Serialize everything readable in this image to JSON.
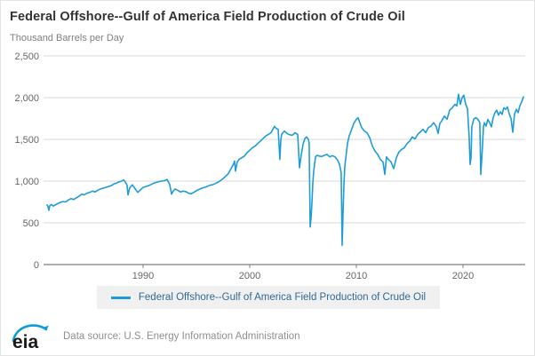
{
  "header": {
    "title": "Federal Offshore--Gulf of America Field Production of Crude Oil",
    "subtitle": "Thousand Barrels per Day"
  },
  "legend": {
    "label": "Federal Offshore--Gulf of America Field Production of Crude Oil",
    "swatch_color": "#1e9cd7"
  },
  "footer": {
    "logo_text": "eia",
    "source": "Data source: U.S. Energy Information Administration"
  },
  "colors": {
    "line": "#1e9cd7",
    "grid": "#d9d9d9",
    "axis": "#7f7f7f",
    "tick_label": "#666666",
    "logo_blue": "#0b9dda",
    "logo_dark": "#1a1a1a"
  },
  "chart_data": {
    "type": "line",
    "title": "Federal Offshore--Gulf of America Field Production of Crude Oil",
    "xlabel": "",
    "ylabel": "Thousand Barrels per Day",
    "x_range": [
      1981,
      2025.67
    ],
    "ylim": [
      0,
      2500
    ],
    "y_ticks": [
      0,
      500,
      1000,
      1500,
      2000,
      2500
    ],
    "y_tick_labels": [
      "0",
      "500",
      "1,000",
      "1,500",
      "2,000",
      "2,500"
    ],
    "x_ticks": [
      1990,
      2000,
      2010,
      2020
    ],
    "x_tick_labels": [
      "1990",
      "2000",
      "2010",
      "2020"
    ],
    "grid": "horizontal",
    "legend_position": "bottom",
    "series": [
      {
        "name": "Federal Offshore--Gulf of America Field Production of Crude Oil",
        "points": [
          [
            1981.0,
            715
          ],
          [
            1981.08,
            695
          ],
          [
            1981.17,
            650
          ],
          [
            1981.25,
            705
          ],
          [
            1981.42,
            720
          ],
          [
            1981.58,
            700
          ],
          [
            1981.75,
            715
          ],
          [
            1982.0,
            730
          ],
          [
            1982.25,
            745
          ],
          [
            1982.5,
            755
          ],
          [
            1982.75,
            750
          ],
          [
            1983.0,
            775
          ],
          [
            1983.25,
            790
          ],
          [
            1983.5,
            780
          ],
          [
            1983.75,
            800
          ],
          [
            1984.0,
            820
          ],
          [
            1984.25,
            845
          ],
          [
            1984.5,
            835
          ],
          [
            1984.75,
            855
          ],
          [
            1985.0,
            865
          ],
          [
            1985.25,
            880
          ],
          [
            1985.5,
            870
          ],
          [
            1985.75,
            890
          ],
          [
            1986.0,
            905
          ],
          [
            1986.25,
            915
          ],
          [
            1986.5,
            925
          ],
          [
            1986.75,
            935
          ],
          [
            1987.0,
            945
          ],
          [
            1987.25,
            965
          ],
          [
            1987.5,
            975
          ],
          [
            1987.75,
            990
          ],
          [
            1988.0,
            1000
          ],
          [
            1988.17,
            1015
          ],
          [
            1988.33,
            990
          ],
          [
            1988.5,
            950
          ],
          [
            1988.58,
            835
          ],
          [
            1988.75,
            920
          ],
          [
            1989.0,
            955
          ],
          [
            1989.25,
            910
          ],
          [
            1989.5,
            865
          ],
          [
            1989.75,
            895
          ],
          [
            1990.0,
            925
          ],
          [
            1990.25,
            935
          ],
          [
            1990.5,
            945
          ],
          [
            1990.75,
            960
          ],
          [
            1991.0,
            975
          ],
          [
            1991.25,
            985
          ],
          [
            1991.5,
            995
          ],
          [
            1991.75,
            1000
          ],
          [
            1992.0,
            1005
          ],
          [
            1992.25,
            1020
          ],
          [
            1992.5,
            960
          ],
          [
            1992.67,
            845
          ],
          [
            1992.83,
            880
          ],
          [
            1993.0,
            905
          ],
          [
            1993.25,
            890
          ],
          [
            1993.5,
            870
          ],
          [
            1993.75,
            880
          ],
          [
            1994.0,
            875
          ],
          [
            1994.25,
            855
          ],
          [
            1994.5,
            848
          ],
          [
            1994.75,
            865
          ],
          [
            1995.0,
            885
          ],
          [
            1995.25,
            900
          ],
          [
            1995.5,
            915
          ],
          [
            1995.75,
            925
          ],
          [
            1996.0,
            935
          ],
          [
            1996.25,
            950
          ],
          [
            1996.5,
            955
          ],
          [
            1996.75,
            970
          ],
          [
            1997.0,
            985
          ],
          [
            1997.25,
            1005
          ],
          [
            1997.5,
            1030
          ],
          [
            1997.75,
            1060
          ],
          [
            1998.0,
            1090
          ],
          [
            1998.25,
            1150
          ],
          [
            1998.5,
            1210
          ],
          [
            1998.58,
            1240
          ],
          [
            1998.67,
            1120
          ],
          [
            1998.83,
            1230
          ],
          [
            1999.0,
            1260
          ],
          [
            1999.25,
            1280
          ],
          [
            1999.5,
            1300
          ],
          [
            1999.75,
            1340
          ],
          [
            2000.0,
            1370
          ],
          [
            2000.25,
            1400
          ],
          [
            2000.5,
            1420
          ],
          [
            2000.75,
            1450
          ],
          [
            2001.0,
            1480
          ],
          [
            2001.25,
            1510
          ],
          [
            2001.5,
            1540
          ],
          [
            2001.75,
            1560
          ],
          [
            2002.0,
            1580
          ],
          [
            2002.17,
            1620
          ],
          [
            2002.33,
            1655
          ],
          [
            2002.5,
            1630
          ],
          [
            2002.67,
            1620
          ],
          [
            2002.83,
            1260
          ],
          [
            2002.92,
            1500
          ],
          [
            2003.0,
            1560
          ],
          [
            2003.25,
            1600
          ],
          [
            2003.5,
            1570
          ],
          [
            2003.75,
            1555
          ],
          [
            2004.0,
            1550
          ],
          [
            2004.25,
            1580
          ],
          [
            2004.5,
            1560
          ],
          [
            2004.67,
            1160
          ],
          [
            2004.83,
            1310
          ],
          [
            2005.0,
            1440
          ],
          [
            2005.17,
            1510
          ],
          [
            2005.33,
            1530
          ],
          [
            2005.5,
            1500
          ],
          [
            2005.58,
            1450
          ],
          [
            2005.67,
            450
          ],
          [
            2005.75,
            560
          ],
          [
            2005.83,
            720
          ],
          [
            2005.92,
            980
          ],
          [
            2006.0,
            1120
          ],
          [
            2006.17,
            1290
          ],
          [
            2006.33,
            1310
          ],
          [
            2006.5,
            1300
          ],
          [
            2006.75,
            1295
          ],
          [
            2007.0,
            1310
          ],
          [
            2007.25,
            1320
          ],
          [
            2007.5,
            1290
          ],
          [
            2007.75,
            1305
          ],
          [
            2008.0,
            1290
          ],
          [
            2008.25,
            1250
          ],
          [
            2008.42,
            1200
          ],
          [
            2008.58,
            1100
          ],
          [
            2008.67,
            230
          ],
          [
            2008.75,
            620
          ],
          [
            2008.83,
            930
          ],
          [
            2008.92,
            1180
          ],
          [
            2009.0,
            1270
          ],
          [
            2009.17,
            1450
          ],
          [
            2009.33,
            1540
          ],
          [
            2009.5,
            1600
          ],
          [
            2009.75,
            1690
          ],
          [
            2010.0,
            1740
          ],
          [
            2010.17,
            1760
          ],
          [
            2010.33,
            1700
          ],
          [
            2010.5,
            1640
          ],
          [
            2010.75,
            1600
          ],
          [
            2011.0,
            1580
          ],
          [
            2011.25,
            1520
          ],
          [
            2011.5,
            1420
          ],
          [
            2011.75,
            1360
          ],
          [
            2012.0,
            1320
          ],
          [
            2012.25,
            1260
          ],
          [
            2012.5,
            1230
          ],
          [
            2012.67,
            1080
          ],
          [
            2012.83,
            1290
          ],
          [
            2013.0,
            1260
          ],
          [
            2013.25,
            1230
          ],
          [
            2013.5,
            1150
          ],
          [
            2013.75,
            1280
          ],
          [
            2014.0,
            1350
          ],
          [
            2014.25,
            1380
          ],
          [
            2014.5,
            1400
          ],
          [
            2014.75,
            1450
          ],
          [
            2015.0,
            1480
          ],
          [
            2015.25,
            1530
          ],
          [
            2015.5,
            1505
          ],
          [
            2015.75,
            1560
          ],
          [
            2016.0,
            1590
          ],
          [
            2016.25,
            1620
          ],
          [
            2016.5,
            1580
          ],
          [
            2016.75,
            1640
          ],
          [
            2017.0,
            1660
          ],
          [
            2017.25,
            1700
          ],
          [
            2017.5,
            1650
          ],
          [
            2017.67,
            1570
          ],
          [
            2017.83,
            1690
          ],
          [
            2018.0,
            1720
          ],
          [
            2018.25,
            1780
          ],
          [
            2018.5,
            1740
          ],
          [
            2018.75,
            1850
          ],
          [
            2019.0,
            1880
          ],
          [
            2019.25,
            1920
          ],
          [
            2019.42,
            1900
          ],
          [
            2019.58,
            2040
          ],
          [
            2019.75,
            1920
          ],
          [
            2019.92,
            2000
          ],
          [
            2020.08,
            2030
          ],
          [
            2020.25,
            1920
          ],
          [
            2020.42,
            1870
          ],
          [
            2020.58,
            1530
          ],
          [
            2020.67,
            1200
          ],
          [
            2020.75,
            1280
          ],
          [
            2020.83,
            1650
          ],
          [
            2021.0,
            1740
          ],
          [
            2021.17,
            1760
          ],
          [
            2021.33,
            1750
          ],
          [
            2021.5,
            1720
          ],
          [
            2021.58,
            1700
          ],
          [
            2021.67,
            1080
          ],
          [
            2021.75,
            1250
          ],
          [
            2021.83,
            1420
          ],
          [
            2021.92,
            1650
          ],
          [
            2022.0,
            1700
          ],
          [
            2022.17,
            1660
          ],
          [
            2022.33,
            1740
          ],
          [
            2022.5,
            1700
          ],
          [
            2022.67,
            1650
          ],
          [
            2022.83,
            1760
          ],
          [
            2023.0,
            1820
          ],
          [
            2023.17,
            1850
          ],
          [
            2023.33,
            1790
          ],
          [
            2023.5,
            1830
          ],
          [
            2023.67,
            1800
          ],
          [
            2023.83,
            1880
          ],
          [
            2024.0,
            1860
          ],
          [
            2024.17,
            1890
          ],
          [
            2024.33,
            1810
          ],
          [
            2024.5,
            1750
          ],
          [
            2024.67,
            1585
          ],
          [
            2024.83,
            1800
          ],
          [
            2025.0,
            1860
          ],
          [
            2025.17,
            1820
          ],
          [
            2025.33,
            1900
          ],
          [
            2025.5,
            1950
          ],
          [
            2025.67,
            2010
          ]
        ]
      }
    ]
  }
}
